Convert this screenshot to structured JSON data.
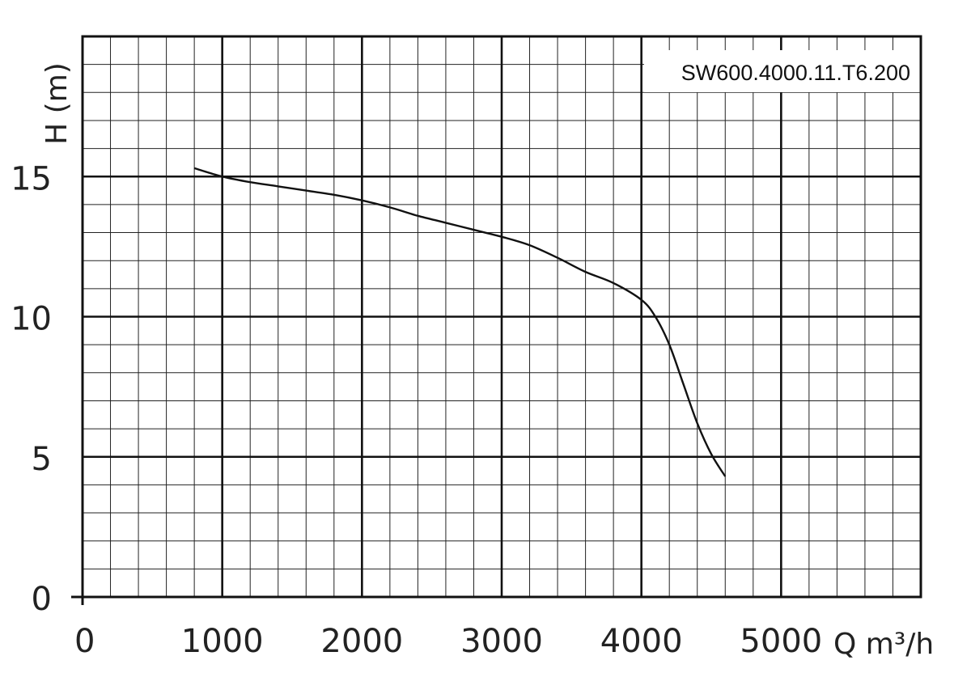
{
  "chart_data": {
    "type": "line",
    "title": "",
    "model_label": "SW600.4000.11.T6.200",
    "xlabel": "Q m³/h",
    "ylabel": "H (m)",
    "xlim": [
      0,
      6000
    ],
    "ylim": [
      0,
      20
    ],
    "x_ticks": [
      0,
      1000,
      2000,
      3000,
      4000,
      5000
    ],
    "x_tick_labels": [
      "0",
      "1000",
      "2000",
      "3000",
      "4000",
      "5000"
    ],
    "y_ticks": [
      0,
      5,
      10,
      15
    ],
    "y_tick_labels": [
      "0",
      "5",
      "10",
      "15"
    ],
    "grid": true,
    "series": [
      {
        "x": [
          800,
          1000,
          1200,
          1400,
          1600,
          1800,
          2000,
          2200,
          2400,
          2600,
          2800,
          3000,
          3200,
          3400,
          3600,
          3800,
          4000,
          4100,
          4200,
          4300,
          4400,
          4500,
          4600
        ],
        "y": [
          15.3,
          15.0,
          14.8,
          14.65,
          14.5,
          14.35,
          14.15,
          13.9,
          13.6,
          13.35,
          13.1,
          12.85,
          12.55,
          12.1,
          11.6,
          11.2,
          10.6,
          10.0,
          9.0,
          7.6,
          6.2,
          5.1,
          4.3
        ]
      }
    ]
  }
}
